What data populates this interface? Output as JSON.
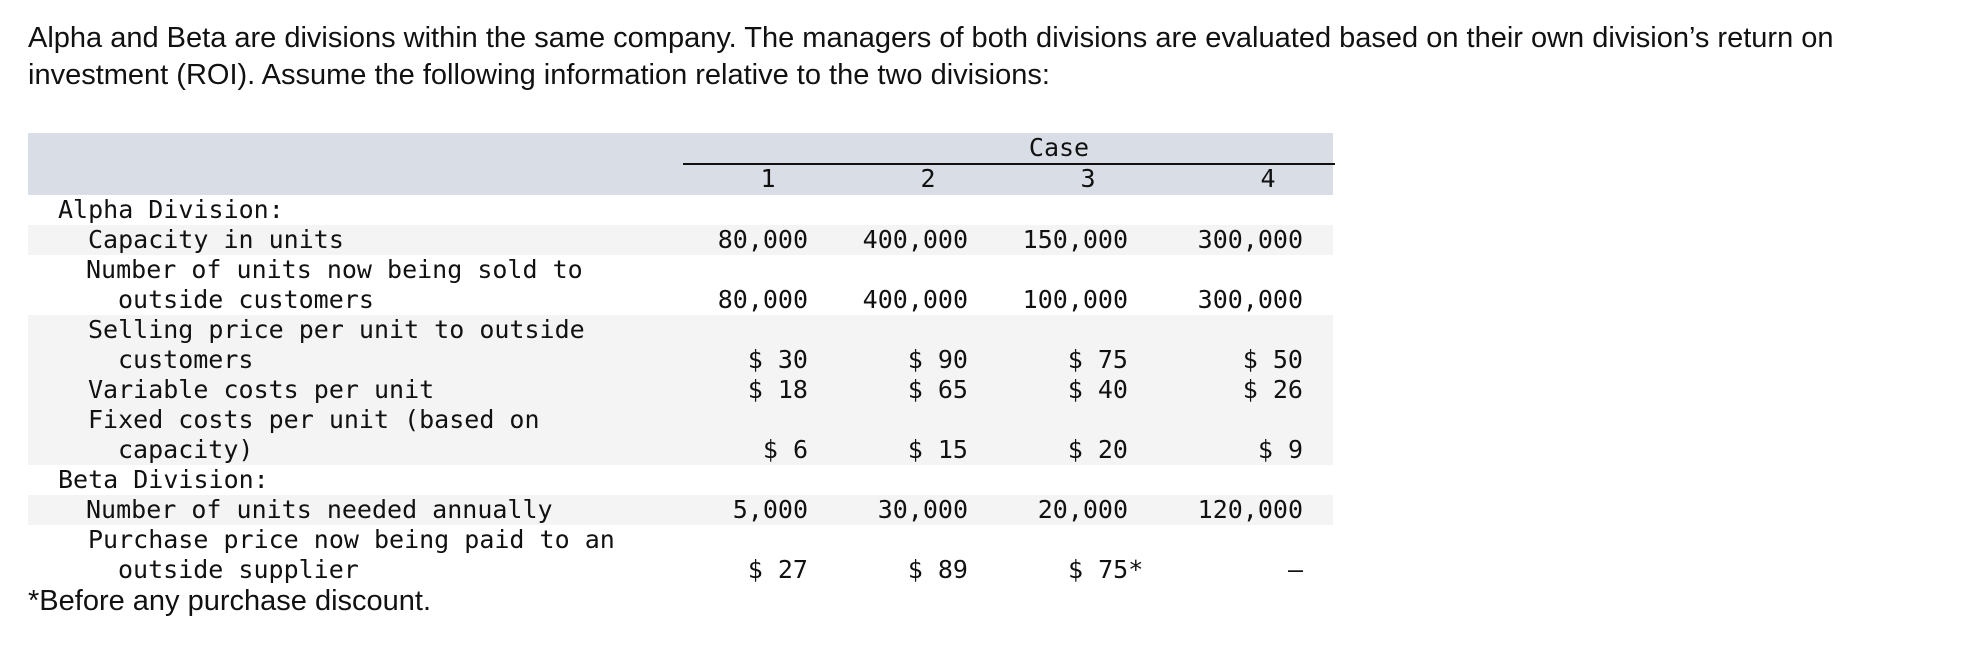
{
  "intro": "Alpha and Beta are divisions within the same company. The managers of both divisions are evaluated based on their own division’s return on investment (ROI). Assume the following information relative to the two divisions:",
  "table": {
    "case_label": "Case",
    "columns": [
      "1",
      "2",
      "3",
      "4"
    ],
    "sections": {
      "alpha": "Alpha Division:",
      "beta": "Beta Division:"
    },
    "rows": {
      "capacity": {
        "label": "Capacity in units",
        "values": [
          "80,000",
          "400,000",
          "150,000",
          "300,000"
        ]
      },
      "units_sold": {
        "label_line1": "Number of units now being sold to",
        "label_line2": "outside customers",
        "values": [
          "80,000",
          "400,000",
          "100,000",
          "300,000"
        ]
      },
      "selling_price": {
        "label_line1": "Selling price per unit to outside",
        "label_line2": "customers",
        "values": [
          "$ 30",
          "$ 90",
          "$ 75",
          "$ 50"
        ]
      },
      "variable_costs": {
        "label": "Variable costs per unit",
        "values": [
          "$ 18",
          "$ 65",
          "$ 40",
          "$ 26"
        ]
      },
      "fixed_costs": {
        "label_line1": "Fixed costs per unit (based on",
        "label_line2": "capacity)",
        "values": [
          "$ 6",
          "$ 15",
          "$ 20",
          "$ 9"
        ]
      },
      "units_needed": {
        "label": "Number of units needed annually",
        "values": [
          "5,000",
          "30,000",
          "20,000",
          "120,000"
        ]
      },
      "purchase_price": {
        "label_line1": "Purchase price now being paid to an",
        "label_line2": "outside supplier",
        "values": [
          "$ 27",
          "$ 89",
          "$ 75*",
          "–"
        ]
      }
    }
  },
  "footnote": "*Before any purchase discount."
}
